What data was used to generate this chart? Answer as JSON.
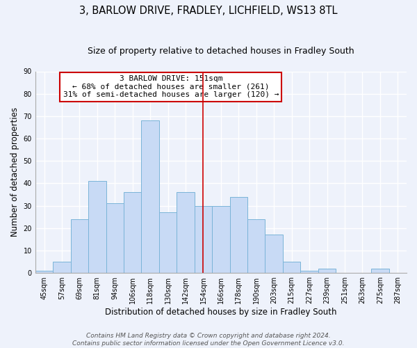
{
  "title": "3, BARLOW DRIVE, FRADLEY, LICHFIELD, WS13 8TL",
  "subtitle": "Size of property relative to detached houses in Fradley South",
  "xlabel": "Distribution of detached houses by size in Fradley South",
  "ylabel": "Number of detached properties",
  "bin_labels": [
    "45sqm",
    "57sqm",
    "69sqm",
    "81sqm",
    "94sqm",
    "106sqm",
    "118sqm",
    "130sqm",
    "142sqm",
    "154sqm",
    "166sqm",
    "178sqm",
    "190sqm",
    "203sqm",
    "215sqm",
    "227sqm",
    "239sqm",
    "251sqm",
    "263sqm",
    "275sqm",
    "287sqm"
  ],
  "bar_values": [
    1,
    5,
    24,
    41,
    31,
    36,
    68,
    27,
    36,
    30,
    30,
    34,
    24,
    17,
    5,
    1,
    2,
    0,
    0,
    2,
    0
  ],
  "bar_color": "#c8daf5",
  "bar_edge_color": "#7ab4d8",
  "vline_color": "#cc0000",
  "annotation_text": "3 BARLOW DRIVE: 151sqm\n← 68% of detached houses are smaller (261)\n31% of semi-detached houses are larger (120) →",
  "annotation_box_color": "#ffffff",
  "annotation_box_edge": "#cc0000",
  "ylim": [
    0,
    90
  ],
  "yticks": [
    0,
    10,
    20,
    30,
    40,
    50,
    60,
    70,
    80,
    90
  ],
  "footer_text": "Contains HM Land Registry data © Crown copyright and database right 2024.\nContains public sector information licensed under the Open Government Licence v3.0.",
  "bg_color": "#eef2fb",
  "grid_color": "#ffffff",
  "title_fontsize": 10.5,
  "subtitle_fontsize": 9,
  "axis_label_fontsize": 8.5,
  "tick_fontsize": 7,
  "annotation_fontsize": 8,
  "footer_fontsize": 6.5
}
